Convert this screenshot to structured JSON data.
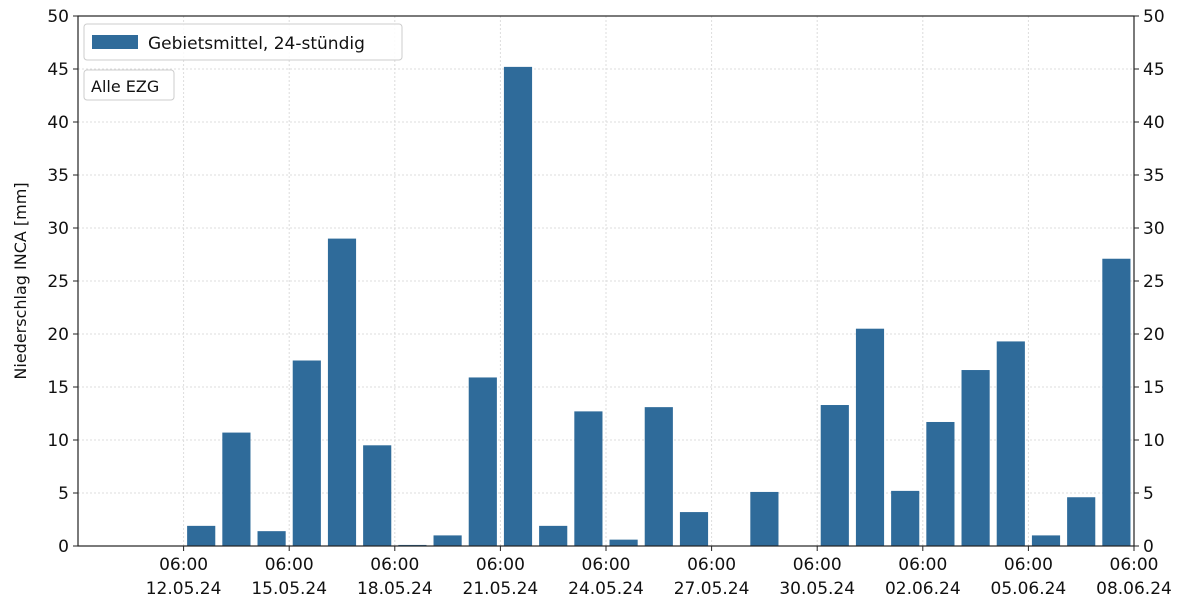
{
  "chart_data": {
    "type": "bar",
    "ylabel": "Niederschlag INCA [mm]",
    "xlabel": "",
    "ylim": [
      0,
      50
    ],
    "yticks": [
      0,
      5,
      10,
      15,
      20,
      25,
      30,
      35,
      40,
      45,
      50
    ],
    "grid": true,
    "legend_position": "top-left",
    "annotation": "Alle EZG",
    "x_start": "2024-05-09T06:00",
    "x_end": "2024-06-08T06:00",
    "xtick_times": [
      "2024-05-12T06:00",
      "2024-05-15T06:00",
      "2024-05-18T06:00",
      "2024-05-21T06:00",
      "2024-05-24T06:00",
      "2024-05-27T06:00",
      "2024-05-30T06:00",
      "2024-06-02T06:00",
      "2024-06-05T06:00",
      "2024-06-08T06:00"
    ],
    "xtick_labels": [
      {
        "time": "06:00",
        "date": "12.05.24"
      },
      {
        "time": "06:00",
        "date": "15.05.24"
      },
      {
        "time": "06:00",
        "date": "18.05.24"
      },
      {
        "time": "06:00",
        "date": "21.05.24"
      },
      {
        "time": "06:00",
        "date": "24.05.24"
      },
      {
        "time": "06:00",
        "date": "27.05.24"
      },
      {
        "time": "06:00",
        "date": "30.05.24"
      },
      {
        "time": "06:00",
        "date": "02.06.24"
      },
      {
        "time": "06:00",
        "date": "05.06.24"
      },
      {
        "time": "06:00",
        "date": "08.06.24"
      }
    ],
    "series": [
      {
        "name": "Gebietsmittel, 24-stündig",
        "color": "#2f6b9a",
        "points": [
          {
            "x": "2024-05-10T06:00",
            "y": 0
          },
          {
            "x": "2024-05-11T06:00",
            "y": 0
          },
          {
            "x": "2024-05-12T06:00",
            "y": 0
          },
          {
            "x": "2024-05-13T06:00",
            "y": 1.9
          },
          {
            "x": "2024-05-14T06:00",
            "y": 10.7
          },
          {
            "x": "2024-05-15T06:00",
            "y": 1.4
          },
          {
            "x": "2024-05-16T06:00",
            "y": 17.5
          },
          {
            "x": "2024-05-17T06:00",
            "y": 29.0
          },
          {
            "x": "2024-05-18T06:00",
            "y": 9.5
          },
          {
            "x": "2024-05-19T06:00",
            "y": 0.1
          },
          {
            "x": "2024-05-20T06:00",
            "y": 1.0
          },
          {
            "x": "2024-05-21T06:00",
            "y": 15.9
          },
          {
            "x": "2024-05-22T06:00",
            "y": 45.2
          },
          {
            "x": "2024-05-23T06:00",
            "y": 1.9
          },
          {
            "x": "2024-05-24T06:00",
            "y": 12.7
          },
          {
            "x": "2024-05-25T06:00",
            "y": 0.6
          },
          {
            "x": "2024-05-26T06:00",
            "y": 13.1
          },
          {
            "x": "2024-05-27T06:00",
            "y": 3.2
          },
          {
            "x": "2024-05-28T06:00",
            "y": 0
          },
          {
            "x": "2024-05-29T06:00",
            "y": 5.1
          },
          {
            "x": "2024-05-30T06:00",
            "y": 0
          },
          {
            "x": "2024-05-31T06:00",
            "y": 13.3
          },
          {
            "x": "2024-06-01T06:00",
            "y": 20.5
          },
          {
            "x": "2024-06-02T06:00",
            "y": 5.2
          },
          {
            "x": "2024-06-03T06:00",
            "y": 11.7
          },
          {
            "x": "2024-06-04T06:00",
            "y": 16.6
          },
          {
            "x": "2024-06-05T06:00",
            "y": 19.3
          },
          {
            "x": "2024-06-06T06:00",
            "y": 1.0
          },
          {
            "x": "2024-06-07T06:00",
            "y": 4.6
          },
          {
            "x": "2024-06-08T06:00",
            "y": 27.1
          }
        ]
      }
    ]
  }
}
